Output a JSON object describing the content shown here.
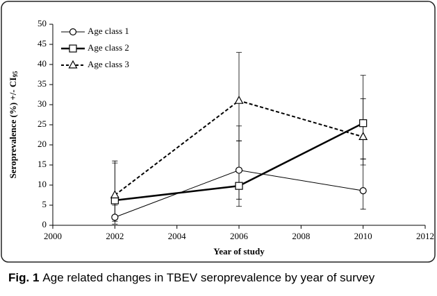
{
  "chart_data": {
    "type": "line",
    "x_label": "Year of study",
    "y_label": "Seroprevalence (%) +/- CI",
    "y_label_sub": "95",
    "x": [
      2002,
      2006,
      2010
    ],
    "xlim": [
      2000,
      2012
    ],
    "xticks": [
      2000,
      2002,
      2004,
      2006,
      2008,
      2010,
      2012
    ],
    "ylim": [
      0,
      50
    ],
    "yticks": [
      0,
      5,
      10,
      15,
      20,
      25,
      30,
      35,
      40,
      45,
      50
    ],
    "grid": false,
    "legend": "top-left",
    "series": [
      {
        "name": "Age class 1",
        "color": "#000000",
        "marker": "circle",
        "dash": false,
        "line_width": 1,
        "values": [
          2,
          13.7,
          8.6
        ],
        "ci_low": [
          0.3,
          6.5,
          4
        ],
        "ci_high": [
          5,
          24.7,
          16.5
        ]
      },
      {
        "name": "Age class 2",
        "color": "#000000",
        "marker": "square",
        "dash": false,
        "line_width": 2.5,
        "values": [
          6.2,
          9.8,
          25.4
        ],
        "ci_low": [
          1,
          4.7,
          15
        ],
        "ci_high": [
          15.5,
          21,
          37.3
        ]
      },
      {
        "name": "Age class 3",
        "color": "#000000",
        "marker": "triangle",
        "dash": true,
        "line_width": 2,
        "values": [
          7.5,
          31,
          22
        ],
        "ci_low": [
          1.5,
          21,
          16.5
        ],
        "ci_high": [
          16,
          43,
          31.5
        ]
      }
    ]
  },
  "caption": {
    "label": "Fig. 1",
    "text": "Age related changes in TBEV seroprevalence by year of survey"
  }
}
